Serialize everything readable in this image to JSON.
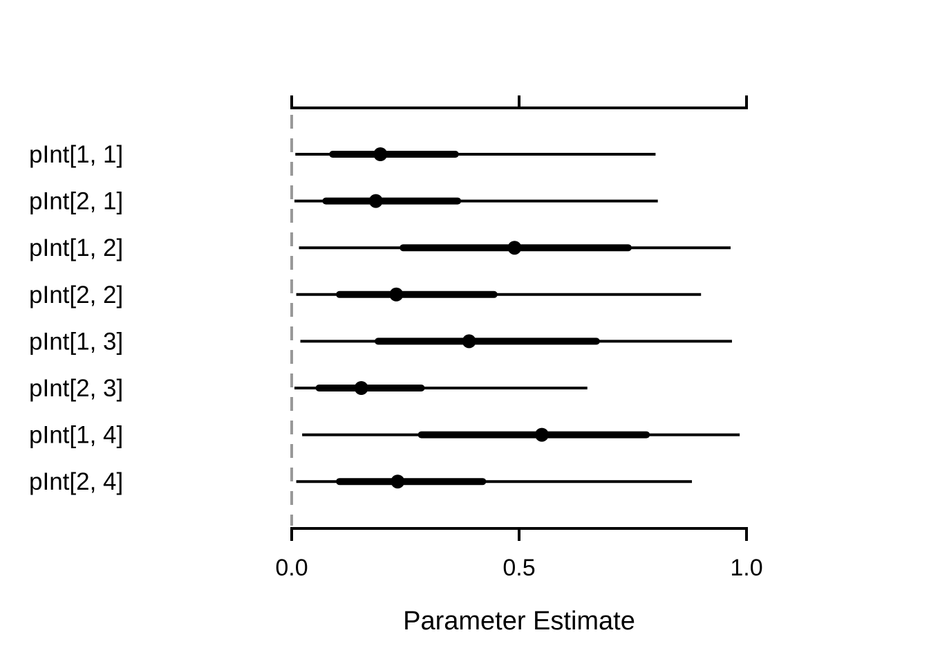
{
  "chart_data": {
    "type": "interval",
    "title": "",
    "xlabel": "Parameter Estimate",
    "ylabel": "",
    "xlim": [
      0.0,
      1.0
    ],
    "x_ticks": [
      0.0,
      0.5,
      1.0
    ],
    "x_tick_labels": [
      "0.0",
      "0.5",
      "1.0"
    ],
    "reference_line": {
      "x": 0.0,
      "style": "dashed",
      "color": "#999999"
    },
    "grid": false,
    "legend": "none",
    "colors": {
      "marks": "#000000",
      "reference": "#999999"
    },
    "parameters": [
      {
        "label": "pInt[1, 1]",
        "median": 0.195,
        "inner": [
          0.09,
          0.36
        ],
        "outer": [
          0.008,
          0.8
        ]
      },
      {
        "label": "pInt[2, 1]",
        "median": 0.185,
        "inner": [
          0.075,
          0.365
        ],
        "outer": [
          0.006,
          0.805
        ]
      },
      {
        "label": "pInt[1, 2]",
        "median": 0.49,
        "inner": [
          0.245,
          0.74
        ],
        "outer": [
          0.016,
          0.965
        ]
      },
      {
        "label": "pInt[2, 2]",
        "median": 0.23,
        "inner": [
          0.105,
          0.445
        ],
        "outer": [
          0.01,
          0.9
        ]
      },
      {
        "label": "pInt[1, 3]",
        "median": 0.39,
        "inner": [
          0.19,
          0.67
        ],
        "outer": [
          0.019,
          0.968
        ]
      },
      {
        "label": "pInt[2, 3]",
        "median": 0.153,
        "inner": [
          0.06,
          0.285
        ],
        "outer": [
          0.006,
          0.65
        ]
      },
      {
        "label": "pInt[1, 4]",
        "median": 0.55,
        "inner": [
          0.285,
          0.78
        ],
        "outer": [
          0.023,
          0.985
        ]
      },
      {
        "label": "pInt[2, 4]",
        "median": 0.233,
        "inner": [
          0.105,
          0.42
        ],
        "outer": [
          0.01,
          0.88
        ]
      }
    ]
  }
}
